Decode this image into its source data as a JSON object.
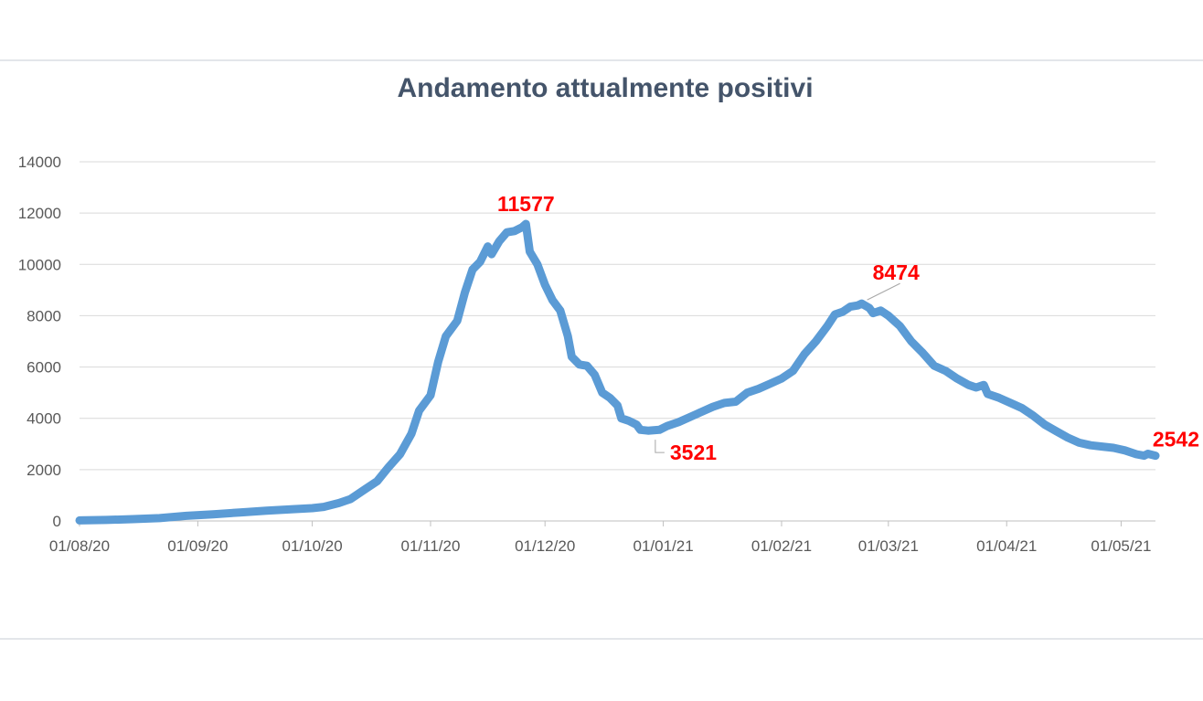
{
  "chart_data": {
    "type": "line",
    "title": "Andamento attualmente positivi",
    "xlabel": "",
    "ylabel": "",
    "ylim": [
      0,
      14000
    ],
    "yticks": [
      0,
      2000,
      4000,
      6000,
      8000,
      10000,
      12000,
      14000
    ],
    "xlim": [
      "2020-08-01",
      "2021-05-10"
    ],
    "xticks": [
      {
        "date": "2020-08-01",
        "label": "01/08/20"
      },
      {
        "date": "2020-09-01",
        "label": "01/09/20"
      },
      {
        "date": "2020-10-01",
        "label": "01/10/20"
      },
      {
        "date": "2020-11-01",
        "label": "01/11/20"
      },
      {
        "date": "2020-12-01",
        "label": "01/12/20"
      },
      {
        "date": "2021-01-01",
        "label": "01/01/21"
      },
      {
        "date": "2021-02-01",
        "label": "01/02/21"
      },
      {
        "date": "2021-03-01",
        "label": "01/03/21"
      },
      {
        "date": "2021-04-01",
        "label": "01/04/21"
      },
      {
        "date": "2021-05-01",
        "label": "01/05/21"
      }
    ],
    "grid": true,
    "color": "#5b9bd5",
    "label_color": "#ff0000",
    "series": [
      {
        "points": [
          [
            "2020-08-01",
            20
          ],
          [
            "2020-08-08",
            40
          ],
          [
            "2020-08-15",
            70
          ],
          [
            "2020-08-22",
            110
          ],
          [
            "2020-08-29",
            200
          ],
          [
            "2020-09-05",
            260
          ],
          [
            "2020-09-12",
            330
          ],
          [
            "2020-09-19",
            400
          ],
          [
            "2020-09-26",
            460
          ],
          [
            "2020-10-01",
            500
          ],
          [
            "2020-10-04",
            550
          ],
          [
            "2020-10-08",
            700
          ],
          [
            "2020-10-11",
            850
          ],
          [
            "2020-10-15",
            1250
          ],
          [
            "2020-10-18",
            1550
          ],
          [
            "2020-10-21",
            2100
          ],
          [
            "2020-10-24",
            2600
          ],
          [
            "2020-10-27",
            3400
          ],
          [
            "2020-10-29",
            4300
          ],
          [
            "2020-11-01",
            4900
          ],
          [
            "2020-11-03",
            6200
          ],
          [
            "2020-11-05",
            7200
          ],
          [
            "2020-11-08",
            7800
          ],
          [
            "2020-11-10",
            8900
          ],
          [
            "2020-11-12",
            9800
          ],
          [
            "2020-11-14",
            10100
          ],
          [
            "2020-11-16",
            10700
          ],
          [
            "2020-11-17",
            10400
          ],
          [
            "2020-11-19",
            10900
          ],
          [
            "2020-11-21",
            11250
          ],
          [
            "2020-11-23",
            11300
          ],
          [
            "2020-11-25",
            11450
          ],
          [
            "2020-11-26",
            11577
          ],
          [
            "2020-11-27",
            10500
          ],
          [
            "2020-11-29",
            10000
          ],
          [
            "2020-12-01",
            9200
          ],
          [
            "2020-12-03",
            8600
          ],
          [
            "2020-12-05",
            8200
          ],
          [
            "2020-12-07",
            7200
          ],
          [
            "2020-12-08",
            6400
          ],
          [
            "2020-12-10",
            6100
          ],
          [
            "2020-12-12",
            6050
          ],
          [
            "2020-12-14",
            5700
          ],
          [
            "2020-12-16",
            5000
          ],
          [
            "2020-12-18",
            4800
          ],
          [
            "2020-12-20",
            4500
          ],
          [
            "2020-12-21",
            4000
          ],
          [
            "2020-12-23",
            3900
          ],
          [
            "2020-12-25",
            3750
          ],
          [
            "2020-12-26",
            3550
          ],
          [
            "2020-12-28",
            3521
          ],
          [
            "2020-12-31",
            3550
          ],
          [
            "2021-01-02",
            3700
          ],
          [
            "2021-01-05",
            3850
          ],
          [
            "2021-01-08",
            4050
          ],
          [
            "2021-01-11",
            4250
          ],
          [
            "2021-01-14",
            4450
          ],
          [
            "2021-01-17",
            4600
          ],
          [
            "2021-01-20",
            4650
          ],
          [
            "2021-01-23",
            5000
          ],
          [
            "2021-01-26",
            5150
          ],
          [
            "2021-01-29",
            5350
          ],
          [
            "2021-02-01",
            5550
          ],
          [
            "2021-02-04",
            5850
          ],
          [
            "2021-02-07",
            6500
          ],
          [
            "2021-02-10",
            7000
          ],
          [
            "2021-02-13",
            7600
          ],
          [
            "2021-02-15",
            8050
          ],
          [
            "2021-02-17",
            8150
          ],
          [
            "2021-02-19",
            8350
          ],
          [
            "2021-02-21",
            8400
          ],
          [
            "2021-02-22",
            8474
          ],
          [
            "2021-02-24",
            8300
          ],
          [
            "2021-02-25",
            8100
          ],
          [
            "2021-02-27",
            8200
          ],
          [
            "2021-03-01",
            8000
          ],
          [
            "2021-03-04",
            7600
          ],
          [
            "2021-03-07",
            7000
          ],
          [
            "2021-03-10",
            6550
          ],
          [
            "2021-03-13",
            6050
          ],
          [
            "2021-03-16",
            5850
          ],
          [
            "2021-03-19",
            5550
          ],
          [
            "2021-03-22",
            5300
          ],
          [
            "2021-03-24",
            5200
          ],
          [
            "2021-03-26",
            5300
          ],
          [
            "2021-03-27",
            4950
          ],
          [
            "2021-03-30",
            4800
          ],
          [
            "2021-04-02",
            4600
          ],
          [
            "2021-04-05",
            4400
          ],
          [
            "2021-04-08",
            4100
          ],
          [
            "2021-04-11",
            3750
          ],
          [
            "2021-04-14",
            3500
          ],
          [
            "2021-04-17",
            3250
          ],
          [
            "2021-04-20",
            3050
          ],
          [
            "2021-04-23",
            2950
          ],
          [
            "2021-04-26",
            2900
          ],
          [
            "2021-04-29",
            2850
          ],
          [
            "2021-05-02",
            2750
          ],
          [
            "2021-05-05",
            2600
          ],
          [
            "2021-05-07",
            2542
          ],
          [
            "2021-05-08",
            2620
          ],
          [
            "2021-05-10",
            2542
          ]
        ]
      }
    ],
    "annotations": [
      {
        "text": "11577",
        "date": "2020-11-26",
        "value": 11577,
        "anchor": "above"
      },
      {
        "text": "3521",
        "date": "2020-12-28",
        "value": 3521,
        "anchor": "below-right",
        "leader": true
      },
      {
        "text": "8474",
        "date": "2021-02-22",
        "value": 8474,
        "anchor": "above-right",
        "leader": true
      },
      {
        "text": "2542",
        "date": "2021-05-10",
        "value": 2542,
        "anchor": "above"
      }
    ]
  }
}
